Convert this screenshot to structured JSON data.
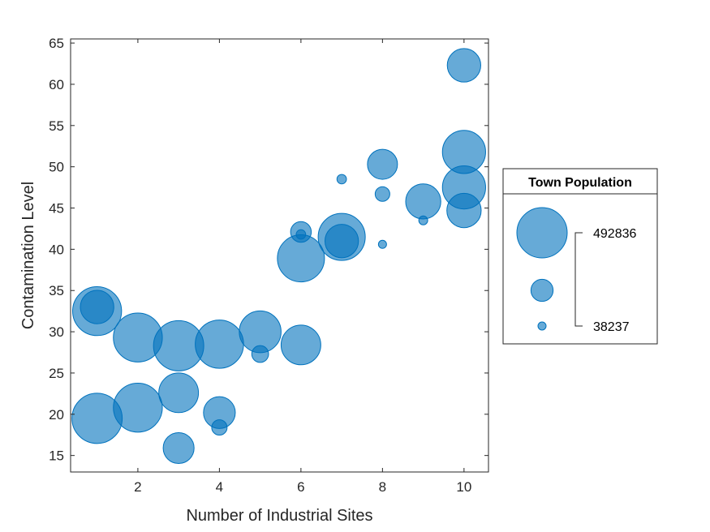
{
  "chart_data": {
    "type": "scatter",
    "xlabel": "Number of Industrial Sites",
    "ylabel": "Contamination Level",
    "xlim": [
      0.35,
      10.6
    ],
    "ylim": [
      13,
      65.5
    ],
    "xticks": [
      2,
      4,
      6,
      8,
      10
    ],
    "yticks": [
      15,
      20,
      25,
      30,
      35,
      40,
      45,
      50,
      55,
      60,
      65
    ],
    "color": "#0072BD",
    "points": [
      {
        "x": 1,
        "y": 19.5,
        "size": 492000
      },
      {
        "x": 1,
        "y": 32.5,
        "size": 470000
      },
      {
        "x": 1,
        "y": 33.0,
        "size": 250000
      },
      {
        "x": 2,
        "y": 20.8,
        "size": 470000
      },
      {
        "x": 2,
        "y": 29.3,
        "size": 470000
      },
      {
        "x": 3,
        "y": 15.9,
        "size": 220000
      },
      {
        "x": 3,
        "y": 22.6,
        "size": 330000
      },
      {
        "x": 3,
        "y": 28.3,
        "size": 492000
      },
      {
        "x": 4,
        "y": 18.4,
        "size": 80000
      },
      {
        "x": 4,
        "y": 20.2,
        "size": 230000
      },
      {
        "x": 4,
        "y": 28.5,
        "size": 460000
      },
      {
        "x": 5,
        "y": 27.3,
        "size": 90000
      },
      {
        "x": 5,
        "y": 30.0,
        "size": 360000
      },
      {
        "x": 6,
        "y": 28.4,
        "size": 330000
      },
      {
        "x": 6,
        "y": 38.9,
        "size": 440000
      },
      {
        "x": 6,
        "y": 41.8,
        "size": 45000
      },
      {
        "x": 6,
        "y": 42.1,
        "size": 120000
      },
      {
        "x": 7,
        "y": 41.0,
        "size": 250000
      },
      {
        "x": 7,
        "y": 41.5,
        "size": 440000
      },
      {
        "x": 7,
        "y": 48.5,
        "size": 45000
      },
      {
        "x": 8,
        "y": 40.6,
        "size": 38237
      },
      {
        "x": 8,
        "y": 46.7,
        "size": 75000
      },
      {
        "x": 8,
        "y": 50.3,
        "size": 210000
      },
      {
        "x": 9,
        "y": 43.5,
        "size": 42000
      },
      {
        "x": 9,
        "y": 45.8,
        "size": 270000
      },
      {
        "x": 10,
        "y": 44.7,
        "size": 260000
      },
      {
        "x": 10,
        "y": 47.5,
        "size": 380000
      },
      {
        "x": 10,
        "y": 51.8,
        "size": 380000
      },
      {
        "x": 10,
        "y": 62.3,
        "size": 250000
      }
    ],
    "legend": {
      "title": "Town Population",
      "max_label": "492836",
      "min_label": "38237",
      "max_value": 492836,
      "min_value": 38237,
      "placement": "right"
    }
  }
}
